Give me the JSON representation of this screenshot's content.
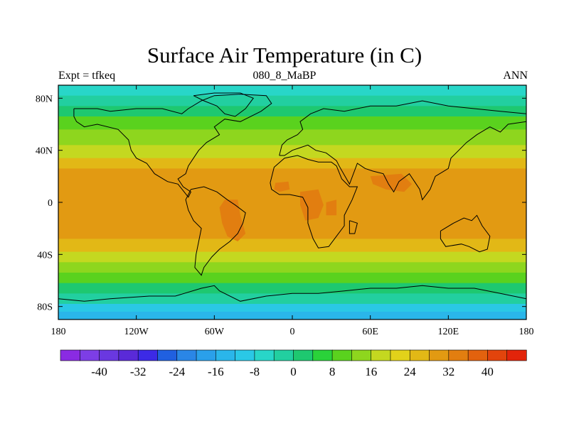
{
  "title": "Surface Air Temperature (in C)",
  "subtitle_left": "Expt = tfkeq",
  "subtitle_center": "080_8_MaBP",
  "subtitle_right": "ANN",
  "lat_ticks": [
    {
      "value": 80,
      "label": "80N"
    },
    {
      "value": 40,
      "label": "40N"
    },
    {
      "value": 0,
      "label": "0"
    },
    {
      "value": -40,
      "label": "40S"
    },
    {
      "value": -80,
      "label": "80S"
    }
  ],
  "lon_ticks": [
    {
      "value": -180,
      "label": "180"
    },
    {
      "value": -120,
      "label": "120W"
    },
    {
      "value": -60,
      "label": "60W"
    },
    {
      "value": 0,
      "label": "0"
    },
    {
      "value": 60,
      "label": "60E"
    },
    {
      "value": 120,
      "label": "120E"
    },
    {
      "value": 180,
      "label": "180"
    }
  ],
  "colorbar": {
    "colors": [
      "#8a2be2",
      "#7d3ee6",
      "#6a38e0",
      "#5a2ad8",
      "#3c2ae6",
      "#2060e0",
      "#2a86e6",
      "#2aa0ea",
      "#2ab6ea",
      "#2ac8e6",
      "#28d6c8",
      "#22cfa0",
      "#1ec870",
      "#2ad23a",
      "#5ad21e",
      "#8ed61e",
      "#c4d820",
      "#e2d21a",
      "#e2b816",
      "#e29a12",
      "#e27e10",
      "#e2620e",
      "#e2440c",
      "#e2240a"
    ],
    "labels": [
      {
        "after_index": 1,
        "text": "-40"
      },
      {
        "after_index": 3,
        "text": "-32"
      },
      {
        "after_index": 5,
        "text": "-24"
      },
      {
        "after_index": 7,
        "text": "-16"
      },
      {
        "after_index": 9,
        "text": "-8"
      },
      {
        "after_index": 11,
        "text": "0"
      },
      {
        "after_index": 13,
        "text": "8"
      },
      {
        "after_index": 15,
        "text": "16"
      },
      {
        "after_index": 17,
        "text": "24"
      },
      {
        "after_index": 19,
        "text": "32"
      },
      {
        "after_index": 21,
        "text": "40"
      }
    ]
  },
  "map_data": {
    "lon_range": [
      -180,
      180
    ],
    "lat_range": [
      -90,
      90
    ],
    "zonal_bands": [
      {
        "lat_top": 90,
        "lat_bottom": 82,
        "color": "#28d6c8"
      },
      {
        "lat_top": 82,
        "lat_bottom": 74,
        "color": "#22cfa0"
      },
      {
        "lat_top": 74,
        "lat_bottom": 66,
        "color": "#1ec870"
      },
      {
        "lat_top": 66,
        "lat_bottom": 56,
        "color": "#5ad21e"
      },
      {
        "lat_top": 56,
        "lat_bottom": 44,
        "color": "#8ed61e"
      },
      {
        "lat_top": 44,
        "lat_bottom": 34,
        "color": "#c4d820"
      },
      {
        "lat_top": 34,
        "lat_bottom": 26,
        "color": "#e2b816"
      },
      {
        "lat_top": 26,
        "lat_bottom": -28,
        "color": "#e29a12"
      },
      {
        "lat_top": -28,
        "lat_bottom": -38,
        "color": "#e2b816"
      },
      {
        "lat_top": -38,
        "lat_bottom": -46,
        "color": "#c4d820"
      },
      {
        "lat_top": -46,
        "lat_bottom": -54,
        "color": "#8ed61e"
      },
      {
        "lat_top": -54,
        "lat_bottom": -62,
        "color": "#5ad21e"
      },
      {
        "lat_top": -62,
        "lat_bottom": -70,
        "color": "#1ec870"
      },
      {
        "lat_top": -70,
        "lat_bottom": -78,
        "color": "#22cfa0"
      },
      {
        "lat_top": -78,
        "lat_bottom": -84,
        "color": "#2ac8e6"
      },
      {
        "lat_top": -84,
        "lat_bottom": -90,
        "color": "#2ab6ea"
      }
    ],
    "hot_spots": [
      {
        "name": "south-america-interior",
        "color": "#e27e10",
        "points": [
          [
            -52,
            2
          ],
          [
            -42,
            2
          ],
          [
            -40,
            -10
          ],
          [
            -36,
            -24
          ],
          [
            -42,
            -30
          ],
          [
            -50,
            -26
          ],
          [
            -54,
            -16
          ],
          [
            -56,
            -4
          ]
        ]
      },
      {
        "name": "north-africa-interior",
        "color": "#e27e10",
        "points": [
          [
            -13,
            15
          ],
          [
            -3,
            16
          ],
          [
            -2,
            10
          ],
          [
            -10,
            8
          ],
          [
            -14,
            10
          ]
        ]
      },
      {
        "name": "central-africa-interior",
        "color": "#e27e10",
        "points": [
          [
            6,
            8
          ],
          [
            20,
            10
          ],
          [
            24,
            -2
          ],
          [
            20,
            -12
          ],
          [
            10,
            -14
          ],
          [
            6,
            -2
          ]
        ]
      },
      {
        "name": "east-africa-interior",
        "color": "#e27e10",
        "points": [
          [
            26,
            0
          ],
          [
            34,
            2
          ],
          [
            34,
            -10
          ],
          [
            26,
            -10
          ]
        ]
      },
      {
        "name": "india-interior",
        "color": "#e27e10",
        "points": [
          [
            60,
            20
          ],
          [
            84,
            22
          ],
          [
            92,
            14
          ],
          [
            86,
            8
          ],
          [
            72,
            10
          ],
          [
            62,
            14
          ]
        ]
      }
    ],
    "coastlines": [
      {
        "name": "north-america",
        "points": [
          [
            -168,
            72
          ],
          [
            -150,
            72
          ],
          [
            -140,
            70
          ],
          [
            -120,
            72
          ],
          [
            -100,
            72
          ],
          [
            -85,
            68
          ],
          [
            -80,
            72
          ],
          [
            -70,
            78
          ],
          [
            -60,
            82
          ],
          [
            -40,
            83
          ],
          [
            -20,
            82
          ],
          [
            -16,
            76
          ],
          [
            -24,
            70
          ],
          [
            -40,
            62
          ],
          [
            -52,
            64
          ],
          [
            -60,
            58
          ],
          [
            -56,
            52
          ],
          [
            -66,
            46
          ],
          [
            -72,
            40
          ],
          [
            -76,
            34
          ],
          [
            -80,
            28
          ],
          [
            -82,
            22
          ],
          [
            -88,
            18
          ],
          [
            -84,
            12
          ],
          [
            -78,
            8
          ],
          [
            -80,
            4
          ],
          [
            -88,
            14
          ],
          [
            -96,
            16
          ],
          [
            -106,
            22
          ],
          [
            -112,
            30
          ],
          [
            -120,
            34
          ],
          [
            -124,
            40
          ],
          [
            -126,
            48
          ],
          [
            -134,
            56
          ],
          [
            -150,
            60
          ],
          [
            -160,
            58
          ],
          [
            -166,
            62
          ],
          [
            -168,
            66
          ],
          [
            -168,
            72
          ]
        ]
      },
      {
        "name": "south-america",
        "points": [
          [
            -78,
            10
          ],
          [
            -68,
            12
          ],
          [
            -58,
            8
          ],
          [
            -50,
            2
          ],
          [
            -44,
            -2
          ],
          [
            -36,
            -8
          ],
          [
            -38,
            -16
          ],
          [
            -42,
            -24
          ],
          [
            -48,
            -30
          ],
          [
            -56,
            -36
          ],
          [
            -62,
            -42
          ],
          [
            -68,
            -50
          ],
          [
            -70,
            -56
          ],
          [
            -75,
            -50
          ],
          [
            -74,
            -40
          ],
          [
            -72,
            -30
          ],
          [
            -70,
            -20
          ],
          [
            -76,
            -14
          ],
          [
            -80,
            -6
          ],
          [
            -82,
            2
          ],
          [
            -78,
            10
          ]
        ]
      },
      {
        "name": "greenland-arctic",
        "points": [
          [
            -76,
            82
          ],
          [
            -60,
            84
          ],
          [
            -40,
            84
          ],
          [
            -30,
            80
          ],
          [
            -36,
            72
          ],
          [
            -44,
            66
          ],
          [
            -52,
            68
          ],
          [
            -58,
            74
          ],
          [
            -68,
            78
          ],
          [
            -76,
            82
          ]
        ]
      },
      {
        "name": "eurasia",
        "points": [
          [
            -10,
            36
          ],
          [
            -8,
            44
          ],
          [
            -4,
            48
          ],
          [
            4,
            52
          ],
          [
            8,
            56
          ],
          [
            6,
            62
          ],
          [
            14,
            68
          ],
          [
            24,
            72
          ],
          [
            40,
            70
          ],
          [
            60,
            74
          ],
          [
            80,
            74
          ],
          [
            100,
            78
          ],
          [
            120,
            74
          ],
          [
            140,
            72
          ],
          [
            160,
            70
          ],
          [
            180,
            68
          ],
          [
            180,
            62
          ],
          [
            166,
            60
          ],
          [
            160,
            54
          ],
          [
            152,
            58
          ],
          [
            142,
            52
          ],
          [
            134,
            46
          ],
          [
            128,
            40
          ],
          [
            122,
            34
          ],
          [
            120,
            26
          ],
          [
            110,
            20
          ],
          [
            106,
            10
          ],
          [
            100,
            2
          ],
          [
            98,
            10
          ],
          [
            94,
            16
          ],
          [
            90,
            22
          ],
          [
            82,
            16
          ],
          [
            78,
            8
          ],
          [
            74,
            14
          ],
          [
            70,
            22
          ],
          [
            62,
            24
          ],
          [
            56,
            26
          ],
          [
            50,
            30
          ],
          [
            44,
            14
          ],
          [
            36,
            28
          ],
          [
            34,
            32
          ],
          [
            26,
            38
          ],
          [
            18,
            40
          ],
          [
            12,
            44
          ],
          [
            6,
            42
          ],
          [
            0,
            40
          ],
          [
            -6,
            36
          ],
          [
            -10,
            36
          ]
        ]
      },
      {
        "name": "africa",
        "points": [
          [
            -17,
            15
          ],
          [
            -14,
            27
          ],
          [
            -6,
            34
          ],
          [
            4,
            36
          ],
          [
            12,
            33
          ],
          [
            20,
            31
          ],
          [
            30,
            31
          ],
          [
            34,
            28
          ],
          [
            38,
            18
          ],
          [
            44,
            12
          ],
          [
            50,
            12
          ],
          [
            46,
            2
          ],
          [
            40,
            -10
          ],
          [
            40,
            -18
          ],
          [
            34,
            -26
          ],
          [
            28,
            -34
          ],
          [
            20,
            -35
          ],
          [
            16,
            -28
          ],
          [
            12,
            -16
          ],
          [
            12,
            -4
          ],
          [
            8,
            4
          ],
          [
            -2,
            6
          ],
          [
            -10,
            6
          ],
          [
            -16,
            10
          ],
          [
            -17,
            15
          ]
        ]
      },
      {
        "name": "madagascar",
        "points": [
          [
            44,
            -14
          ],
          [
            50,
            -16
          ],
          [
            48,
            -24
          ],
          [
            44,
            -24
          ],
          [
            44,
            -14
          ]
        ]
      },
      {
        "name": "australia",
        "points": [
          [
            114,
            -22
          ],
          [
            124,
            -16
          ],
          [
            132,
            -12
          ],
          [
            138,
            -14
          ],
          [
            142,
            -10
          ],
          [
            146,
            -18
          ],
          [
            152,
            -26
          ],
          [
            150,
            -36
          ],
          [
            144,
            -38
          ],
          [
            136,
            -34
          ],
          [
            130,
            -32
          ],
          [
            118,
            -34
          ],
          [
            114,
            -28
          ],
          [
            114,
            -22
          ]
        ]
      },
      {
        "name": "antarctica",
        "points": [
          [
            -180,
            -74
          ],
          [
            -160,
            -76
          ],
          [
            -140,
            -74
          ],
          [
            -110,
            -72
          ],
          [
            -90,
            -72
          ],
          [
            -70,
            -66
          ],
          [
            -60,
            -64
          ],
          [
            -56,
            -68
          ],
          [
            -40,
            -76
          ],
          [
            -20,
            -72
          ],
          [
            0,
            -70
          ],
          [
            20,
            -70
          ],
          [
            40,
            -68
          ],
          [
            60,
            -66
          ],
          [
            80,
            -66
          ],
          [
            100,
            -64
          ],
          [
            120,
            -66
          ],
          [
            140,
            -66
          ],
          [
            160,
            -70
          ],
          [
            170,
            -72
          ],
          [
            180,
            -74
          ],
          [
            180,
            -90
          ],
          [
            -180,
            -90
          ],
          [
            -180,
            -74
          ]
        ]
      }
    ]
  }
}
